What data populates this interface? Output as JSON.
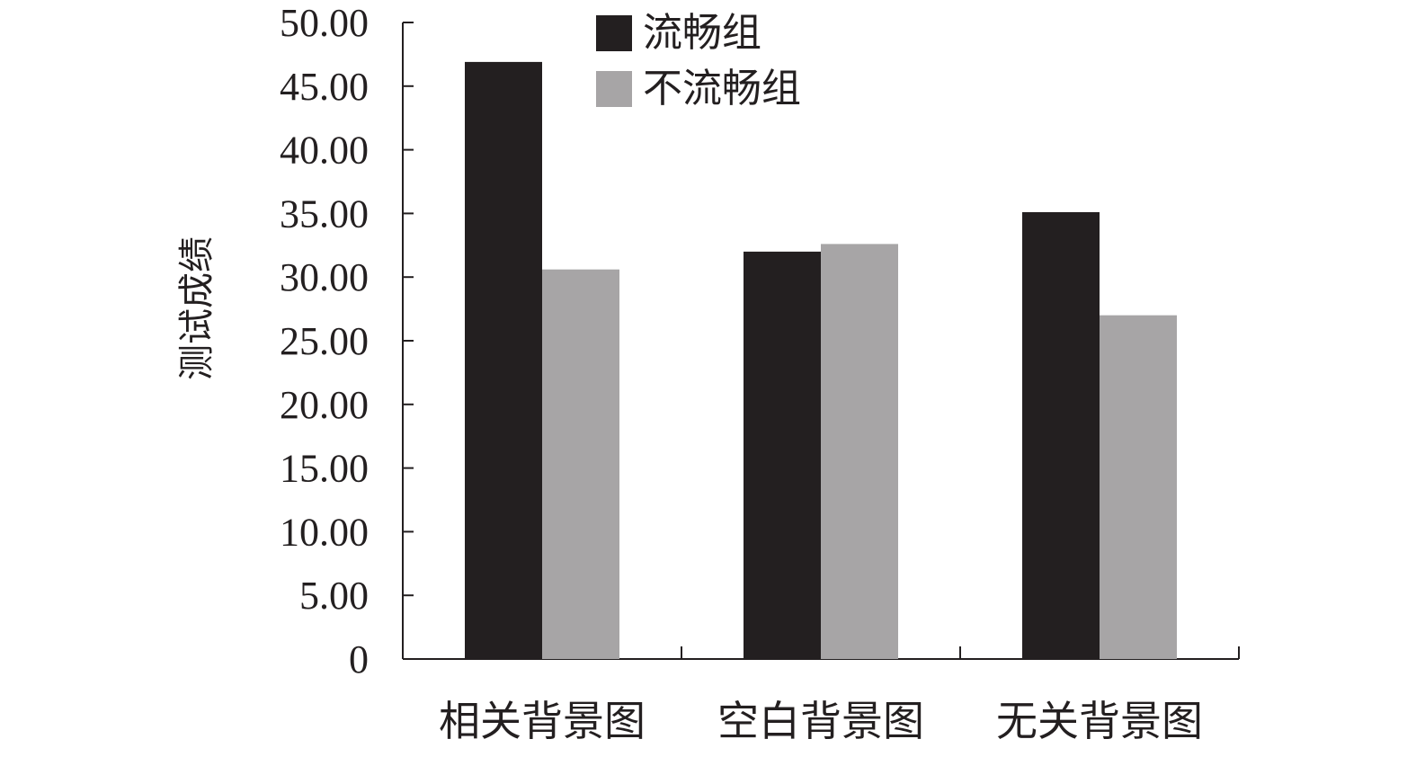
{
  "chart_data": {
    "type": "bar",
    "title": "",
    "xlabel": "",
    "ylabel": "测试成绩",
    "categories": [
      "相关背景图",
      "空白背景图",
      "无关背景图"
    ],
    "series": [
      {
        "name": "流畅组",
        "color": "#231f20",
        "values": [
          46.9,
          32.0,
          35.1
        ]
      },
      {
        "name": "不流畅组",
        "color": "#a7a5a6",
        "values": [
          30.6,
          32.6,
          27.0
        ]
      }
    ],
    "ylim": [
      0,
      50
    ],
    "yticks": [
      "0",
      "5.00",
      "10.00",
      "15.00",
      "20.00",
      "25.00",
      "30.00",
      "35.00",
      "40.00",
      "45.00",
      "50.00"
    ],
    "ytick_values": [
      0,
      5,
      10,
      15,
      20,
      25,
      30,
      35,
      40,
      45,
      50
    ],
    "legend_position": "top-center",
    "grid": false
  }
}
